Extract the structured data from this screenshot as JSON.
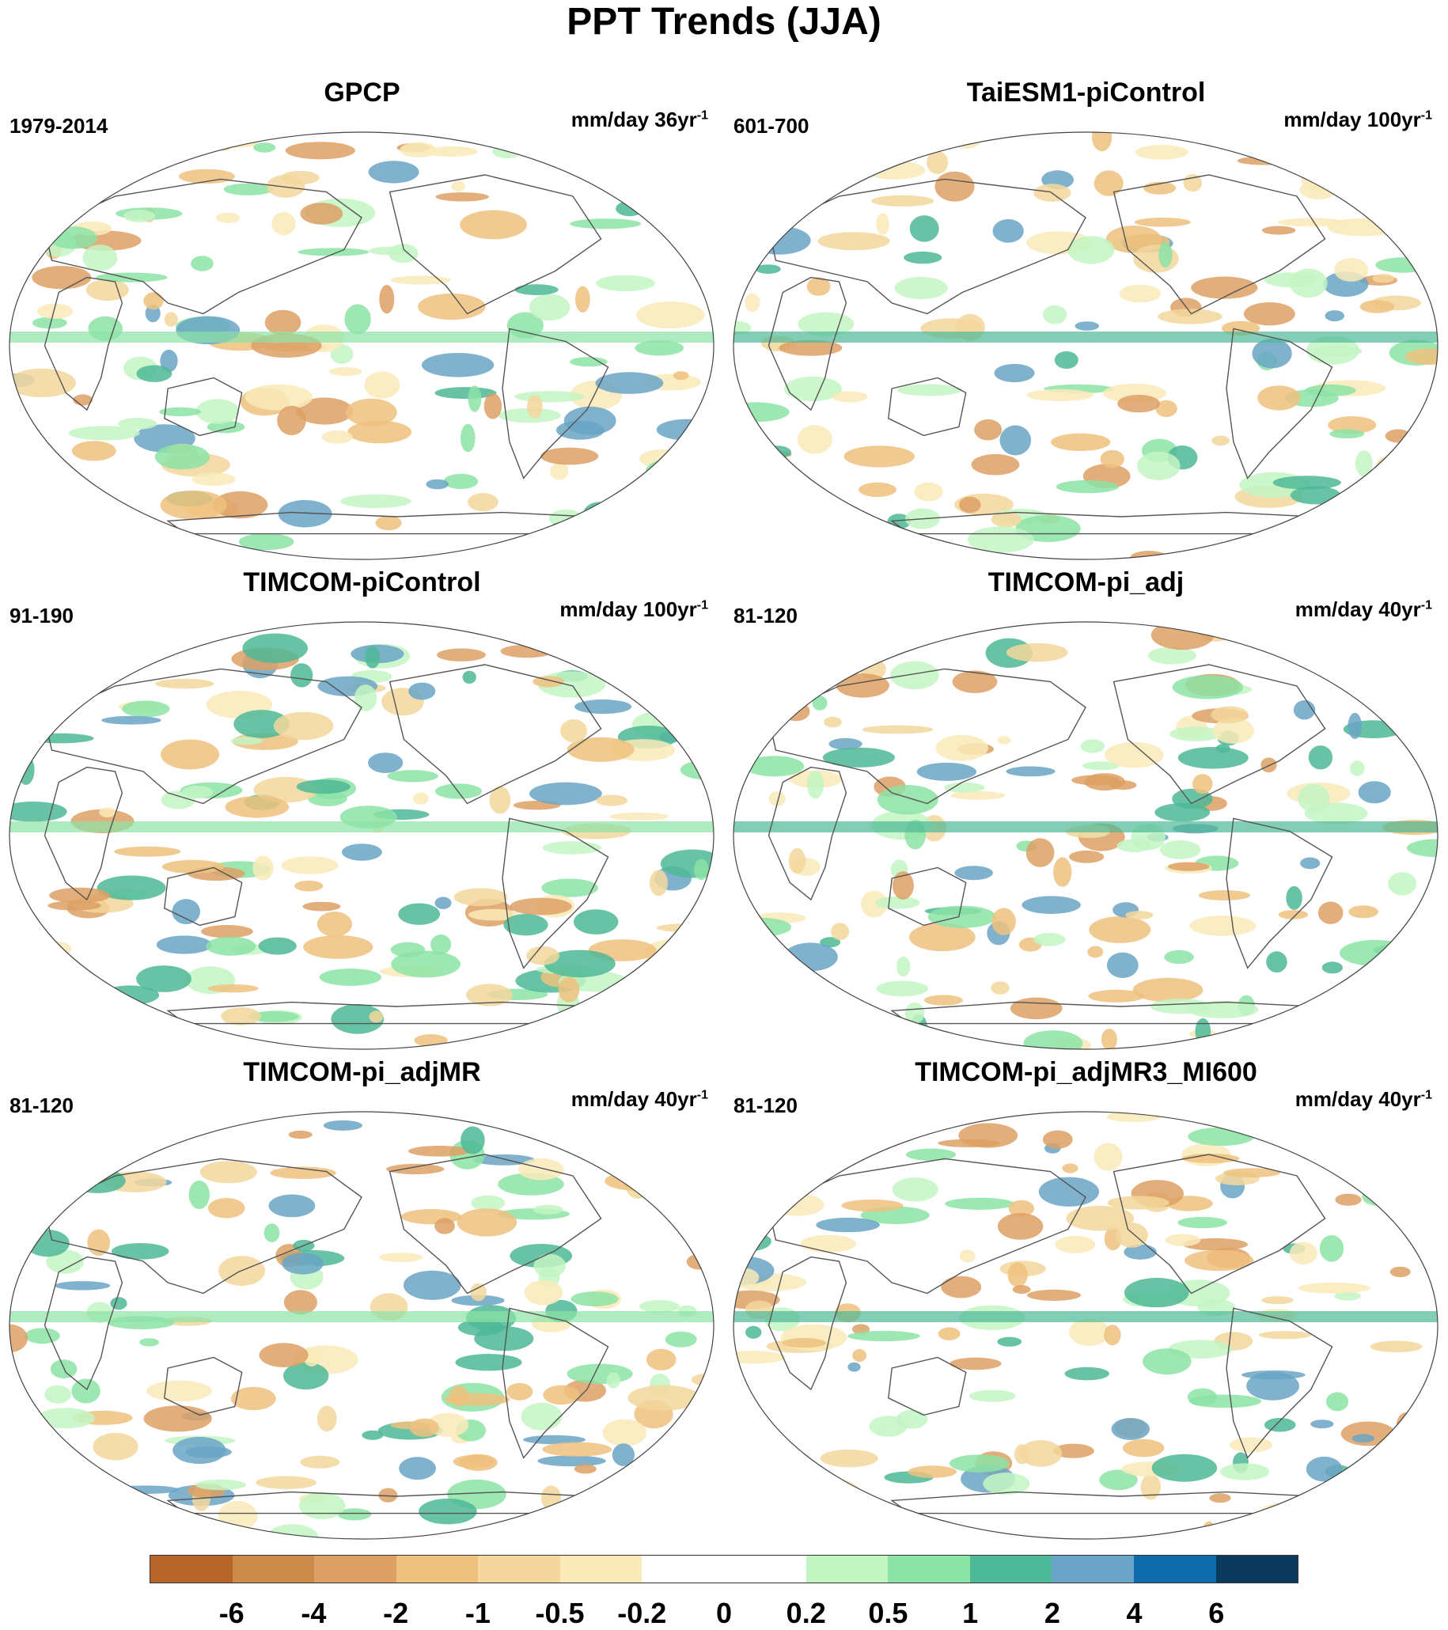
{
  "title": "PPT Trends (JJA)",
  "panels": [
    {
      "title": "GPCP",
      "period": "1979-2014",
      "units": "mm/day 36yr",
      "units_exp": "-1"
    },
    {
      "title": "TaiESM1-piControl",
      "period": "601-700",
      "units": "mm/day 100yr",
      "units_exp": "-1"
    },
    {
      "title": "TIMCOM-piControl",
      "period": "91-190",
      "units": "mm/day 100yr",
      "units_exp": "-1"
    },
    {
      "title": "TIMCOM-pi_adj",
      "period": "81-120",
      "units": "mm/day 40yr",
      "units_exp": "-1"
    },
    {
      "title": "TIMCOM-pi_adjMR",
      "period": "81-120",
      "units": "mm/day 40yr",
      "units_exp": "-1"
    },
    {
      "title": "TIMCOM-pi_adjMR3_MI600",
      "period": "81-120",
      "units": "mm/day 40yr",
      "units_exp": "-1"
    }
  ],
  "colorbar": {
    "labels": [
      "-6",
      "-4",
      "-2",
      "-1",
      "-0.5",
      "-0.2",
      "0",
      "0.2",
      "0.5",
      "1",
      "2",
      "4",
      "6"
    ],
    "colors": [
      "#b5652a",
      "#cc8a4a",
      "#dda064",
      "#eec17e",
      "#f3d79c",
      "#f9eab8",
      "#ffffff",
      "#ffffff",
      "#c3f5c3",
      "#8ce3a6",
      "#4db896",
      "#6aa4c6",
      "#0f6bac",
      "#0b3a5e"
    ]
  }
}
